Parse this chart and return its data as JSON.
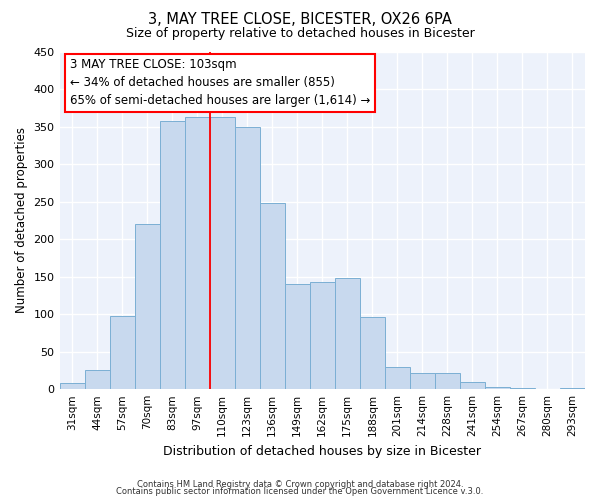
{
  "title": "3, MAY TREE CLOSE, BICESTER, OX26 6PA",
  "subtitle": "Size of property relative to detached houses in Bicester",
  "xlabel": "Distribution of detached houses by size in Bicester",
  "ylabel": "Number of detached properties",
  "bar_labels": [
    "31sqm",
    "44sqm",
    "57sqm",
    "70sqm",
    "83sqm",
    "97sqm",
    "110sqm",
    "123sqm",
    "136sqm",
    "149sqm",
    "162sqm",
    "175sqm",
    "188sqm",
    "201sqm",
    "214sqm",
    "228sqm",
    "241sqm",
    "254sqm",
    "267sqm",
    "280sqm",
    "293sqm"
  ],
  "bar_values": [
    8,
    25,
    98,
    220,
    358,
    363,
    363,
    350,
    248,
    140,
    143,
    148,
    96,
    30,
    22,
    22,
    10,
    3,
    1,
    0,
    2
  ],
  "bar_color": "#c8d9ee",
  "bar_edge_color": "#7bafd4",
  "ylim": [
    0,
    450
  ],
  "yticks": [
    0,
    50,
    100,
    150,
    200,
    250,
    300,
    350,
    400,
    450
  ],
  "red_line_x": 5.5,
  "annotation_title": "3 MAY TREE CLOSE: 103sqm",
  "annotation_line1": "← 34% of detached houses are smaller (855)",
  "annotation_line2": "65% of semi-detached houses are larger (1,614) →",
  "footer_line1": "Contains HM Land Registry data © Crown copyright and database right 2024.",
  "footer_line2": "Contains public sector information licensed under the Open Government Licence v.3.0.",
  "bg_color": "#edf2fb",
  "title_fontsize": 10.5,
  "subtitle_fontsize": 9,
  "annotation_fontsize": 8.5,
  "footer_fontsize": 6
}
